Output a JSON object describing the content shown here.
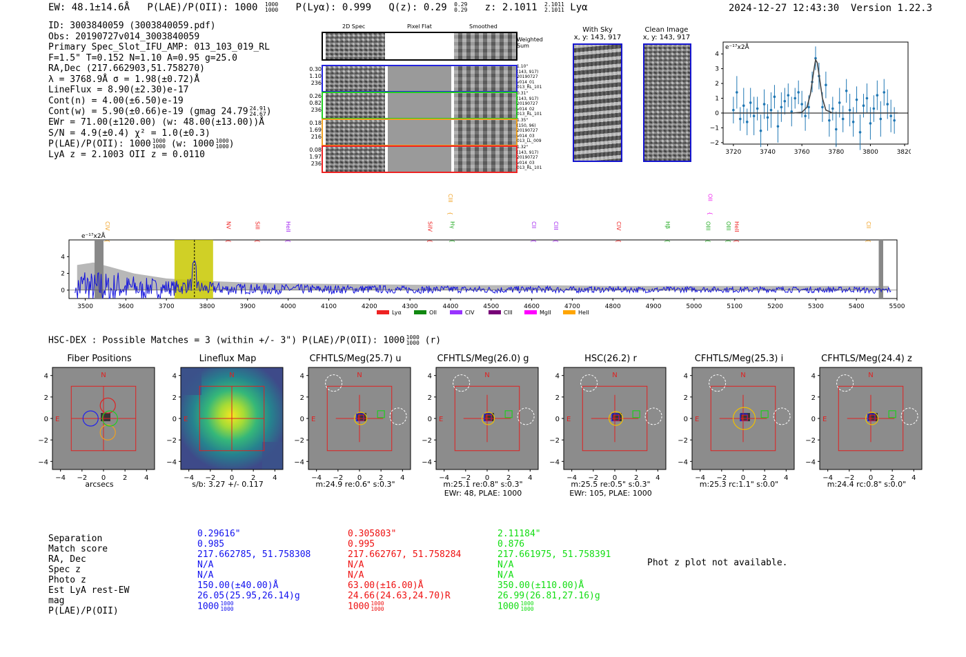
{
  "header": {
    "ew": "EW: 48.1±14.6Å",
    "plae_label": "P(LAE)/P(OII): 1000",
    "plae_hi": "1000",
    "plae_lo": "1000",
    "plya": "P(Lyα): 0.999",
    "qz_label": "Q(z): 0.29",
    "qz_hi": "0.29",
    "qz_lo": "0.29",
    "z_label": "z: 2.1011",
    "z_hi": "2.1011",
    "z_lo": "2.1011",
    "z_line": "Lyα",
    "datetime": "2024-12-27 12:43:30",
    "version": "Version 1.22.3"
  },
  "info": {
    "id": "ID: 3003840059 (3003840059.pdf)",
    "obs": "Obs: 20190727v014_3003840059",
    "slot": "Primary Spec_Slot_IFU_AMP: 013_103_019_RL",
    "fit": "F=1.5\"  T=0.152  N=1.10  A=0.95  g=25.0",
    "radec": "RA,Dec (217.662903,51.758270)",
    "lambda": "λ = 3768.9Å   σ = 1.98(±0.72)Å",
    "lineflux": "LineFlux = 8.90(±2.30)e-17",
    "contn": "Cont(n) = 4.00(±6.50)e-19",
    "contw": "Cont(w) = 5.90(±0.66)e-19 (gmag 24.79",
    "contw_hi": "24.91",
    "contw_lo": "24.67",
    "contw_end": ")",
    "ewr": "EWr = 71.00(±120.00) (w: 48.00(±13.00))Å",
    "sn": "S/N = 4.9(±0.4)  χ² = 1.0(±0.3)",
    "plae": "P(LAE)/P(OII): 1000",
    "plae_hi": "1000",
    "plae_lo": "1000",
    "plae_w": "(w: 1000",
    "plae_w_hi": "1000",
    "plae_w_lo": "1000",
    "plae_end": ")",
    "lyaz": "LyA z = 2.1003   OII z = 0.0110"
  },
  "fibers": {
    "col_headers": [
      "2D Spec",
      "Pixel Flat",
      "Smoothed"
    ],
    "weighted": "Weighted Sum",
    "rows": [
      {
        "left": [
          "0.30",
          "1.10",
          "236"
        ],
        "right": [
          "1.10\"",
          "(143, 917)",
          "20190727",
          "v014_01",
          "013_RL_101"
        ],
        "color": "#2222dd"
      },
      {
        "left": [
          "0.26",
          "0.82",
          "236"
        ],
        "right": [
          "0.31\"",
          "(143, 917)",
          "20190727",
          "v014_02",
          "013_RL_101"
        ],
        "color": "#22cc22"
      },
      {
        "left": [
          "0.18",
          "1.69",
          "216"
        ],
        "right": [
          "1.35\"",
          "(150, 96)",
          "20190727",
          "v014_03",
          "013_LL_009"
        ],
        "color": "#f0a020"
      },
      {
        "left": [
          "0.08",
          "1.97",
          "236"
        ],
        "right": [
          "1.32\"",
          "(143, 917)",
          "20190727",
          "v014_03",
          "013_RL_101"
        ],
        "color": "#ee2222"
      }
    ]
  },
  "sky": {
    "with_sky_title": "With Sky",
    "with_sky_sub": "x, y: 143, 917",
    "clean_title": "Clean Image",
    "clean_sub": "x, y: 143, 917"
  },
  "zoom_chart": {
    "unit": "e⁻¹⁷x2Å",
    "yticks": [
      "4",
      "3",
      "2",
      "1",
      "0",
      "−1",
      "−2"
    ],
    "xticks": [
      "3720",
      "3740",
      "3760",
      "3780",
      "3800",
      "3820"
    ]
  },
  "full_spec": {
    "unit": "e⁻¹⁷x2Å",
    "yticks": [
      "4",
      "2",
      "0"
    ],
    "xticks": [
      "3500",
      "3600",
      "3700",
      "3800",
      "3900",
      "4000",
      "4100",
      "4200",
      "4300",
      "4400",
      "4500",
      "4600",
      "4700",
      "4800",
      "4900",
      "5000",
      "5100",
      "5200",
      "5300",
      "5400",
      "5500"
    ],
    "lines": [
      {
        "label": "CIV",
        "color": "#f0a020",
        "wl": 3545,
        "level": 1
      },
      {
        "label": "NV",
        "color": "#ee2222",
        "wl": 3843,
        "level": 1
      },
      {
        "label": "SiII",
        "color": "#ee2222",
        "wl": 3915,
        "level": 1
      },
      {
        "label": "HeII",
        "color": "#a020f0",
        "wl": 3990,
        "level": 1
      },
      {
        "label": "SiIV",
        "color": "#ee2222",
        "wl": 4340,
        "level": 1
      },
      {
        "label": "CIII",
        "color": "#f0a020",
        "wl": 4390,
        "level": 0
      },
      {
        "label": "Hγ",
        "color": "#22aa22",
        "wl": 4395,
        "level": 1
      },
      {
        "label": "CII",
        "color": "#a020f0",
        "wl": 4596,
        "level": 1
      },
      {
        "label": "CIII",
        "color": "#a020f0",
        "wl": 4650,
        "level": 1
      },
      {
        "label": "CIV",
        "color": "#ee2222",
        "wl": 4805,
        "level": 1
      },
      {
        "label": "Hβ",
        "color": "#22aa22",
        "wl": 4925,
        "level": 1
      },
      {
        "label": "OII",
        "color": "#ee22ee",
        "wl": 5030,
        "level": 0
      },
      {
        "label": "OIII",
        "color": "#22aa22",
        "wl": 5025,
        "level": 1
      },
      {
        "label": "OIII",
        "color": "#22aa22",
        "wl": 5075,
        "level": 1
      },
      {
        "label": "HeII",
        "color": "#ee2222",
        "wl": 5095,
        "level": 1
      },
      {
        "label": "CII",
        "color": "#f0a020",
        "wl": 5420,
        "level": 1
      }
    ],
    "legend": [
      {
        "label": "Lyα",
        "color": "#ee2222"
      },
      {
        "label": "OII",
        "color": "#118811"
      },
      {
        "label": "CIV",
        "color": "#9933ff"
      },
      {
        "label": "CIII",
        "color": "#770077"
      },
      {
        "label": "MgII",
        "color": "#ff00ff"
      },
      {
        "label": "HeII",
        "color": "#ffa500"
      }
    ]
  },
  "hsc": {
    "title": "HSC-DEX : Possible Matches = 3 (within +/- 3\")  P(LAE)/P(OII): 1000",
    "title_hi": "1000",
    "title_lo": "1000",
    "title_end": "(r)"
  },
  "stamps": [
    {
      "title": "Fiber Positions",
      "cap1": "arcsecs",
      "cap2": ""
    },
    {
      "title": "Lineflux Map",
      "cap1": "s/b: 3.27 +/- 0.117",
      "cap2": ""
    },
    {
      "title": "CFHTLS/Meg(25.7) u",
      "cap1": "m:24.9  re:0.6\"  s:0.3\"",
      "cap2": ""
    },
    {
      "title": "CFHTLS/Meg(26.0) g",
      "cap1": "m:25.1  re:0.8\"  s:0.3\"",
      "cap2": "EWr: 48, PLAE: 1000"
    },
    {
      "title": "HSC(26.2) r",
      "cap1": "m:25.5  re:0.5\"  s:0.3\"",
      "cap2": "EWr: 105, PLAE: 1000"
    },
    {
      "title": "CFHTLS/Meg(25.3) i",
      "cap1": "m:25.3  rc:1.1\"  s:0.0\"",
      "cap2": ""
    },
    {
      "title": "CFHTLS/Meg(24.4) z",
      "cap1": "m:24.4  rc:0.8\"  s:0.0\"",
      "cap2": ""
    }
  ],
  "stamp_axis": {
    "yticks": [
      "4",
      "2",
      "0",
      "−2",
      "−4"
    ],
    "xticks": [
      "−4",
      "−2",
      "0",
      "2",
      "4"
    ],
    "north": "N",
    "east": "E"
  },
  "matches": {
    "labels": [
      "Separation",
      "Match score",
      "RA, Dec",
      "Spec z",
      "Photo z",
      "Est LyA rest-EW",
      "mag",
      "P(LAE)/P(OII)"
    ],
    "cols": [
      {
        "color": "#1010ee",
        "values": [
          "0.29616\"",
          "0.985",
          "217.662785, 51.758308",
          "N/A",
          "N/A",
          "150.00(±40.00)Å",
          "26.05(25.95,26.14)g",
          "1000"
        ],
        "hi": "1000",
        "lo": "1000"
      },
      {
        "color": "#ee1010",
        "values": [
          "0.305803\"",
          "0.995",
          "217.662767, 51.758284",
          "N/A",
          "N/A",
          "63.00(±16.00)Å",
          "24.66(24.63,24.70)R",
          "1000"
        ],
        "hi": "1000",
        "lo": "1000"
      },
      {
        "color": "#10dd10",
        "values": [
          "2.11184\"",
          "0.876",
          "217.661975, 51.758391",
          "N/A",
          "N/A",
          "350.00(±110.00)Å",
          "26.99(26.81,27.16)g",
          "1000"
        ],
        "hi": "1000",
        "lo": "1000"
      }
    ],
    "photz_note": "Phot z plot not available."
  },
  "chart_data": [
    {
      "type": "line",
      "title": "",
      "ylabel": "e⁻¹⁷x2Å",
      "xlim": [
        3714,
        3822
      ],
      "ylim": [
        -2.1,
        4.8
      ],
      "series": [
        {
          "name": "flux",
          "x": [
            3720,
            3722,
            3724,
            3726,
            3728,
            3730,
            3732,
            3734,
            3736,
            3738,
            3740,
            3742,
            3744,
            3746,
            3748,
            3750,
            3752,
            3754,
            3756,
            3758,
            3760,
            3762,
            3764,
            3766,
            3768,
            3770,
            3772,
            3774,
            3776,
            3778,
            3780,
            3782,
            3784,
            3786,
            3788,
            3790,
            3792,
            3794,
            3796,
            3798,
            3800,
            3802,
            3804,
            3806,
            3808,
            3810,
            3812,
            3814
          ],
          "values": [
            0.2,
            1.4,
            -0.4,
            0.5,
            -0.6,
            0.7,
            -0.2,
            0.3,
            -1.2,
            0.6,
            -0.3,
            0.2,
            1.1,
            -0.9,
            0.4,
            0.8,
            1.2,
            0.1,
            1.0,
            1.4,
            0.6,
            -0.2,
            0.4,
            2.1,
            3.7,
            2.5,
            0.4,
            1.9,
            -0.5,
            0.3,
            -1.1,
            0.7,
            -0.4,
            1.5,
            0.2,
            -0.6,
            0.9,
            -1.3,
            0.5,
            1.0,
            -0.7,
            0.3,
            1.2,
            -0.4,
            1.4,
            0.6,
            -0.2,
            -0.5
          ]
        },
        {
          "name": "fit",
          "x": [
            3720,
            3755,
            3760,
            3763,
            3765,
            3767,
            3768,
            3769,
            3770,
            3772,
            3774,
            3778,
            3816
          ],
          "values": [
            0.0,
            0.0,
            0.05,
            0.4,
            1.3,
            2.9,
            3.6,
            3.4,
            2.6,
            1.0,
            0.2,
            0.0,
            0.0
          ]
        }
      ]
    },
    {
      "type": "line",
      "title": "",
      "ylabel": "e⁻¹⁷x2Å",
      "xlim": [
        3460,
        5500
      ],
      "ylim": [
        -1,
        6
      ],
      "highlight_band": [
        3720,
        3815
      ],
      "series": [
        {
          "name": "flux",
          "x": [
            3480,
            3500,
            3520,
            3540,
            3560,
            3580,
            3600,
            3620,
            3640,
            3660,
            3680,
            3700,
            3720,
            3740,
            3760,
            3770,
            3780,
            3800,
            3820,
            3850,
            3900,
            3950,
            4000,
            4100,
            4200,
            4300,
            4400,
            4500,
            4600,
            4700,
            4800,
            4900,
            5000,
            5100,
            5200,
            5300,
            5400,
            5450,
            5480
          ],
          "values": [
            0.5,
            3.0,
            -0.8,
            2.1,
            -0.5,
            2.4,
            0.8,
            1.6,
            -0.3,
            1.9,
            0.2,
            1.2,
            0.9,
            1.5,
            2.8,
            3.6,
            1.3,
            0.6,
            1.0,
            0.4,
            0.7,
            0.2,
            0.6,
            0.3,
            0.5,
            0.2,
            0.4,
            0.1,
            0.3,
            0.2,
            0.3,
            0.1,
            0.4,
            0.2,
            0.3,
            0.1,
            0.3,
            -0.4,
            0.1
          ]
        },
        {
          "name": "noise",
          "x": [
            3480,
            3520,
            3560,
            3620,
            3700,
            3800,
            3900,
            4000,
            4200,
            4400,
            4600,
            4800,
            5000,
            5200,
            5480
          ],
          "values": [
            3.0,
            3.3,
            2.8,
            2.0,
            1.4,
            1.1,
            0.9,
            0.8,
            0.7,
            0.6,
            0.6,
            0.5,
            0.5,
            0.5,
            0.5
          ]
        }
      ]
    }
  ]
}
